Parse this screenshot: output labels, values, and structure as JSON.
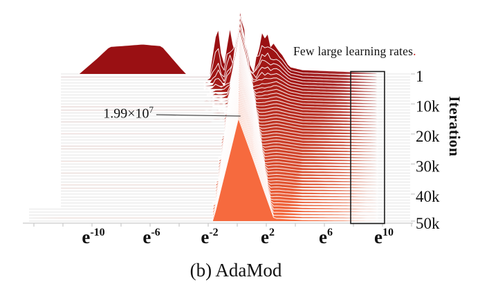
{
  "figure": {
    "caption": "(b) AdaMod",
    "yaxis_title": "Iteration",
    "annotation_peak": {
      "mantissa": "1.99×10",
      "exponent": "7"
    },
    "annotation_tail": {
      "text": "Few large learning rates",
      "period": "."
    }
  },
  "chart_data": {
    "type": "ridgeline",
    "description": "Distribution of actual learning rates at each training iteration for AdaMod; 50 stacked density ridges from iteration 1 (back, dark red) to iteration 50k (front, orange). Early iterations show a broad low-rate hump and jagged peaks plus a long tail of few large learning rates reaching e^10; later iterations concentrate into a single narrow mode near e^0 whose density peak is 1.99×10^7.",
    "x_axis": {
      "scale": "natural log (e^x)",
      "range_exponents": [
        -12.1,
        11.9
      ],
      "minor_tick_exponents": [
        -14,
        -12,
        -10,
        -8,
        -6,
        -4,
        -2,
        0,
        2,
        4,
        6,
        8,
        10,
        12
      ],
      "tick_labels": [
        {
          "base": "e",
          "exp": "-10",
          "v": -10
        },
        {
          "base": "e",
          "exp": "-6",
          "v": -6
        },
        {
          "base": "e",
          "exp": "-2",
          "v": -2
        },
        {
          "base": "e",
          "exp": "2",
          "v": 2
        },
        {
          "base": "e",
          "exp": "6",
          "v": 6
        },
        {
          "base": "e",
          "exp": "10",
          "v": 10
        }
      ]
    },
    "y_axis": {
      "title": "Iteration",
      "tick_labels": [
        {
          "label": "1",
          "ridge_index": 0
        },
        {
          "label": "10k",
          "ridge_index": 10
        },
        {
          "label": "20k",
          "ridge_index": 20
        },
        {
          "label": "30k",
          "ridge_index": 30
        },
        {
          "label": "40k",
          "ridge_index": 40
        },
        {
          "label": "50k",
          "ridge_index": 49
        }
      ]
    },
    "ridge_count": 50,
    "peak_annotation": {
      "value": "1.99×10^7",
      "at_exponent": 0.08,
      "ridge": "final (50k)"
    },
    "highlight_box": {
      "label": "Few large learning rates.",
      "exponent_range": [
        7.81,
        10.14
      ]
    },
    "colors": {
      "ridge_early": "#9a1013",
      "ridge_late": "#f66a3e",
      "ridge_outline": "#ffffff",
      "baseline": "#e4e4e4",
      "axis": "#c9c9c9",
      "tick_label": "#111111",
      "highlight_box": "#1a1a1a",
      "leader_line": "#444444",
      "annotation_period": "#c41f1f"
    },
    "ridge_model": {
      "main_peak": {
        "center_start": 0.2,
        "center_end": 0.08,
        "h_start": 87,
        "h_end": 148,
        "wl_start": 0.55,
        "wl_end": 1.75,
        "wr_start": 0.62,
        "wr_end": 2.45
      },
      "secondary_peaks": [
        {
          "c": -1.35,
          "wl": 0.5,
          "wr": 0.45,
          "h": 72,
          "decay": 2.2
        },
        {
          "c": -0.55,
          "wl": 0.45,
          "wr": 0.4,
          "h": 74,
          "decay": 2.8
        },
        {
          "c": 1.75,
          "wl": 0.6,
          "wr": 0.7,
          "h": 52,
          "decay": 3.5
        },
        {
          "c": 2.6,
          "wl": 0.8,
          "wr": 1.0,
          "h": 30,
          "decay": 5.0
        }
      ],
      "shoulder": {
        "c": 1.1,
        "wl": 1.4,
        "wr": 3.4,
        "h_start": 14,
        "h_end": 3
      },
      "tail": {
        "v_start": 1.6,
        "v_end": 9.62,
        "h_start": 8,
        "h_end": 2.6,
        "curve": 0.8
      },
      "first_ridge_hump": {
        "rise_start": -10.9,
        "flat_start": -8.8,
        "flat_end": -5.2,
        "fall_end": -3.5,
        "height": 38,
        "dome": 5
      },
      "noise": {
        "seed": 7,
        "ridges_affected": 13,
        "zone": [
          -2.2,
          3.0
        ],
        "amp": 22
      }
    }
  }
}
